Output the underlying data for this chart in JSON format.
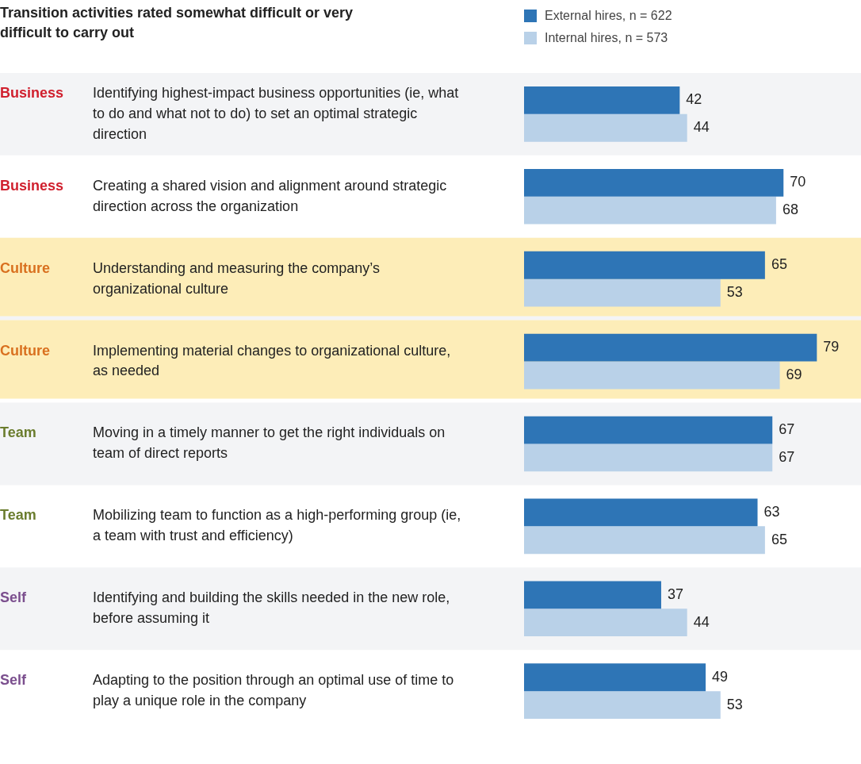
{
  "chart_data": {
    "type": "bar",
    "orientation": "horizontal",
    "title": "Transition activities rated somewhat difficult or very difficult to carry out",
    "categories": [
      "Identifying highest-impact business opportunities (ie, what to do and what not to do) to set an optimal strategic direction",
      "Creating a shared vision and alignment around strategic direction across the organization",
      "Understanding and measuring the company’s organizational culture",
      "Implementing material changes to organizational culture, as needed",
      "Moving in a timely manner to get the right individuals on team of direct reports",
      "Mobilizing team to function as a high-performing group (ie, a team with trust and efficiency)",
      "Identifying and building the skills needed in the new role, before assuming it",
      "Adapting to the position through an optimal use of time to play a unique role in the company"
    ],
    "series": [
      {
        "name": "External hires, n = 622",
        "color": "#2e75b6",
        "values": [
          42,
          70,
          65,
          79,
          67,
          63,
          37,
          49
        ]
      },
      {
        "name": "Internal hires, n = 573",
        "color": "#b9d1e8",
        "values": [
          44,
          68,
          53,
          69,
          67,
          65,
          44,
          53
        ]
      }
    ],
    "annotations": [
      "Business",
      "Business",
      "Culture",
      "Culture",
      "Team",
      "Team",
      "Self",
      "Self"
    ],
    "bands": [
      {
        "axis": "y",
        "from": "Understanding and measuring the company’s organizational culture",
        "to": "Understanding and measuring the company’s organizational culture",
        "color": "#fdedb8"
      },
      {
        "axis": "y",
        "from": "Implementing material changes to organizational culture, as needed",
        "to": "Implementing material changes to organizational culture, as needed",
        "color": "#fdedb8"
      }
    ],
    "data_labels": true,
    "grid": false,
    "legend": "top left",
    "tick_labels": "y"
  }
}
